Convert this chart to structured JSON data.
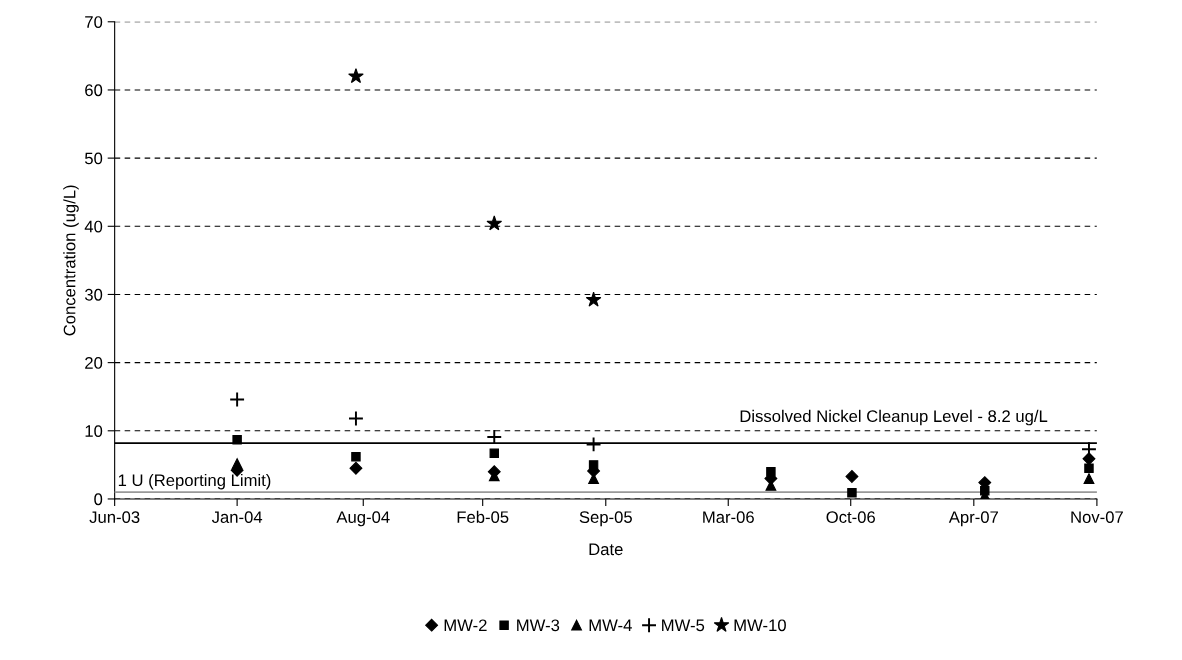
{
  "chart_data": {
    "type": "scatter",
    "xlabel": "Date",
    "ylabel": "Concentration (ug/L)",
    "xlim": [
      "2003-06-20",
      "2007-11-18"
    ],
    "xticks": [
      {
        "value": "2003-06-20",
        "label": "Jun-03"
      },
      {
        "value": "2004-01-07",
        "label": "Jan-04"
      },
      {
        "value": "2004-08-01",
        "label": "Aug-04"
      },
      {
        "value": "2005-02-13",
        "label": "Feb-05"
      },
      {
        "value": "2005-09-03",
        "label": "Sep-05"
      },
      {
        "value": "2006-03-23",
        "label": "Mar-06"
      },
      {
        "value": "2006-10-10",
        "label": "Oct-06"
      },
      {
        "value": "2007-04-30",
        "label": "Apr-07"
      },
      {
        "value": "2007-11-18",
        "label": "Nov-07"
      }
    ],
    "ylim": [
      0,
      70
    ],
    "yticks": [
      0,
      10,
      20,
      30,
      40,
      50,
      60,
      70
    ],
    "grid": "y",
    "legend": "bottom",
    "series": [
      {
        "name": "MW-2",
        "color": "#000000",
        "marker": "diamond",
        "x": [
          "2004-01-07",
          "2004-07-20",
          "2005-03-04",
          "2005-08-14",
          "2006-06-01",
          "2006-10-12",
          "2007-05-18",
          "2007-11-05"
        ],
        "values": [
          4.2,
          4.5,
          4.0,
          4.1,
          3.0,
          3.3,
          2.4,
          5.9
        ]
      },
      {
        "name": "MW-3",
        "color": "#000000",
        "marker": "square",
        "x": [
          "2004-01-07",
          "2004-07-20",
          "2005-03-04",
          "2005-08-14",
          "2006-06-01",
          "2006-10-12",
          "2007-05-18",
          "2007-11-05"
        ],
        "values": [
          8.7,
          6.2,
          6.7,
          5.0,
          4.0,
          0.9,
          1.2,
          4.5
        ]
      },
      {
        "name": "MW-4",
        "color": "#000000",
        "marker": "triangle",
        "x": [
          "2004-01-07",
          "2005-03-04",
          "2005-08-14",
          "2006-06-01",
          "2007-05-18",
          "2007-11-05"
        ],
        "values": [
          5.2,
          3.4,
          3.0,
          2.0,
          0.5,
          3.0
        ]
      },
      {
        "name": "MW-5",
        "color": "#000000",
        "marker": "cross",
        "x": [
          "2004-01-07",
          "2004-07-20",
          "2005-03-04",
          "2005-08-14",
          "2007-11-05"
        ],
        "values": [
          14.6,
          11.8,
          9.1,
          8.0,
          7.3
        ]
      },
      {
        "name": "MW-10",
        "color": "#000000",
        "marker": "star",
        "x": [
          "2004-07-20",
          "2005-03-04",
          "2005-08-14"
        ],
        "values": [
          62.0,
          40.4,
          29.2
        ]
      }
    ],
    "ref_lines": [
      {
        "axis": "y",
        "value": 8.2,
        "label": "Dissolved Nickel Cleanup Level - 8.2 ug/L",
        "color": "#000000"
      },
      {
        "axis": "y",
        "value": 1,
        "label": "1 U (Reporting Limit)",
        "color": "#999999"
      }
    ]
  }
}
